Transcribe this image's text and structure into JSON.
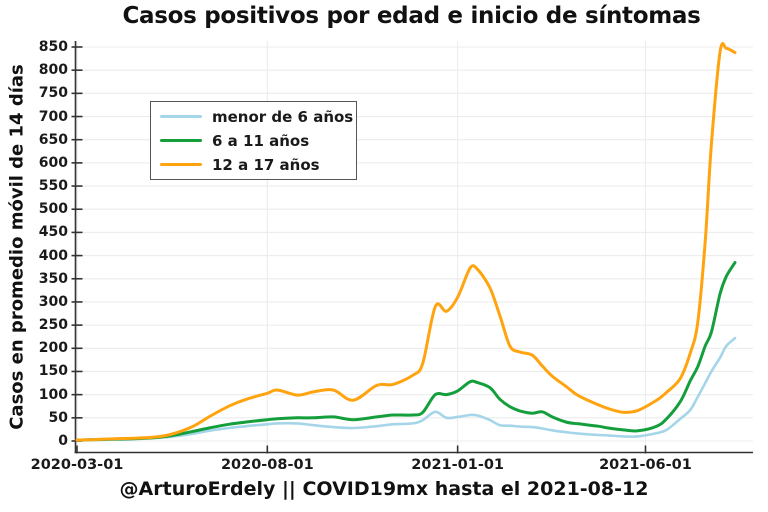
{
  "chart_data": {
    "type": "line",
    "title": "Casos positivos por edad e inicio de síntomas",
    "xlabel": "@ArturoErdely || COVID19mx hasta el 2021-08-12",
    "ylabel": "Casos en promedio móvil de 14 días",
    "xlim": [
      "2020-03-01",
      "2021-08-20"
    ],
    "ylim": [
      0,
      850
    ],
    "grid": true,
    "legend_position": "upper-left",
    "xticks": [
      "2020-03-01",
      "2020-08-01",
      "2021-01-01",
      "2021-06-01"
    ],
    "yticks": [
      0,
      50,
      100,
      150,
      200,
      250,
      300,
      350,
      400,
      450,
      500,
      550,
      600,
      650,
      700,
      750,
      800,
      850
    ],
    "x": [
      "2020-03-01",
      "2020-03-15",
      "2020-04-01",
      "2020-04-15",
      "2020-05-01",
      "2020-05-15",
      "2020-06-01",
      "2020-06-15",
      "2020-07-01",
      "2020-07-15",
      "2020-08-01",
      "2020-08-09",
      "2020-08-25",
      "2020-09-07",
      "2020-09-23",
      "2020-10-09",
      "2020-10-28",
      "2020-11-10",
      "2020-11-26",
      "2020-12-04",
      "2020-12-14",
      "2020-12-23",
      "2021-01-01",
      "2021-01-11",
      "2021-01-17",
      "2021-01-27",
      "2021-02-04",
      "2021-02-12",
      "2021-02-20",
      "2021-03-02",
      "2021-03-10",
      "2021-03-18",
      "2021-03-29",
      "2021-04-08",
      "2021-04-24",
      "2021-05-02",
      "2021-05-14",
      "2021-05-26",
      "2021-06-10",
      "2021-06-18",
      "2021-06-29",
      "2021-07-07",
      "2021-07-13",
      "2021-07-19",
      "2021-07-24",
      "2021-07-31",
      "2021-08-05",
      "2021-08-12"
    ],
    "series": [
      {
        "name": "menor de 6 años",
        "color": "#a5d5e8",
        "stroke_width": 2.6,
        "values": [
          2,
          2,
          3,
          4,
          6,
          9,
          15,
          22,
          28,
          32,
          36,
          38,
          38,
          34,
          30,
          28,
          32,
          36,
          38,
          45,
          63,
          50,
          52,
          56,
          55,
          45,
          34,
          33,
          31,
          30,
          27,
          23,
          19,
          16,
          13,
          12,
          10,
          10,
          17,
          24,
          48,
          67,
          95,
          125,
          150,
          180,
          205,
          222
        ]
      },
      {
        "name": "6 a 11 años",
        "color": "#149e3c",
        "stroke_width": 3,
        "values": [
          2,
          3,
          4,
          5,
          7,
          11,
          20,
          28,
          36,
          41,
          46,
          48,
          50,
          50,
          52,
          46,
          52,
          56,
          56,
          62,
          100,
          100,
          108,
          128,
          126,
          115,
          90,
          74,
          65,
          60,
          63,
          52,
          41,
          37,
          32,
          28,
          24,
          22,
          32,
          48,
          85,
          130,
          160,
          205,
          235,
          318,
          355,
          385
        ]
      },
      {
        "name": "12 a 17 años",
        "color": "#ffa30f",
        "stroke_width": 3,
        "values": [
          2,
          3,
          5,
          6,
          8,
          14,
          30,
          52,
          75,
          90,
          103,
          110,
          99,
          106,
          110,
          88,
          120,
          122,
          142,
          168,
          290,
          280,
          310,
          373,
          370,
          330,
          270,
          205,
          192,
          185,
          162,
          140,
          118,
          98,
          78,
          70,
          62,
          66,
          88,
          105,
          135,
          190,
          255,
          430,
          640,
          840,
          847,
          838
        ]
      }
    ],
    "colors": {
      "background": "#ffffff",
      "axis": "#333333",
      "grid": "#ececec",
      "text": "#1a1a1a"
    }
  }
}
